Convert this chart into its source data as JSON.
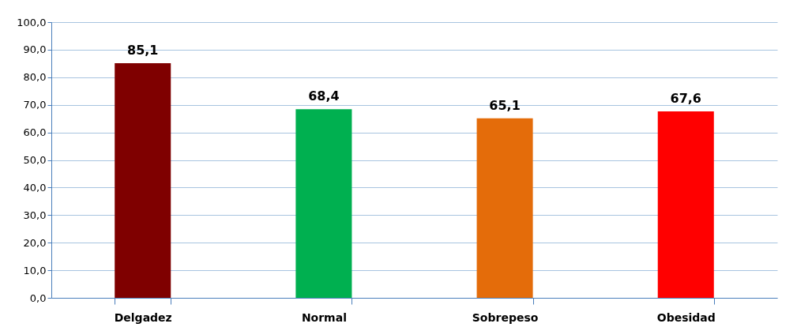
{
  "chart_data": {
    "type": "bar",
    "categories": [
      "Delgadez",
      "Normal",
      "Sobrepeso",
      "Obesidad"
    ],
    "values": [
      85.1,
      68.4,
      65.1,
      67.6
    ],
    "colors": [
      "#7f0000",
      "#00b050",
      "#e46c0a",
      "#ff0000"
    ],
    "value_labels": [
      "85,1",
      "68,4",
      "65,1",
      "67,6"
    ],
    "ylim": [
      0,
      100
    ],
    "yticks": [
      {
        "value": 0,
        "label": "0,0"
      },
      {
        "value": 10,
        "label": "10,0"
      },
      {
        "value": 20,
        "label": "20,0"
      },
      {
        "value": 30,
        "label": "30,0"
      },
      {
        "value": 40,
        "label": "40,0"
      },
      {
        "value": 50,
        "label": "50,0"
      },
      {
        "value": 60,
        "label": "60,0"
      },
      {
        "value": 70,
        "label": "70,0"
      },
      {
        "value": 80,
        "label": "80,0"
      },
      {
        "value": 90,
        "label": "90,0"
      },
      {
        "value": 100,
        "label": "100,0"
      }
    ],
    "grid": "y"
  }
}
